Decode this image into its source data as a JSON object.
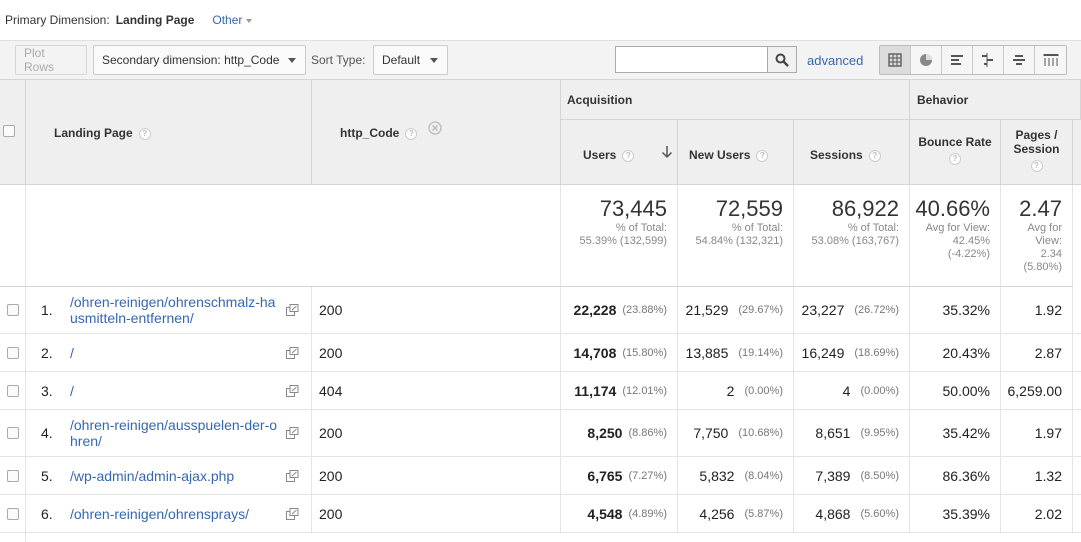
{
  "primary": {
    "label": "Primary Dimension:",
    "current": "Landing Page",
    "other": "Other"
  },
  "toolbar": {
    "plot_rows": "Plot Rows",
    "secondary_dimension": "Secondary dimension: http_Code",
    "sort_type_label": "Sort Type:",
    "sort_type_value": "Default",
    "search_value": "",
    "advanced": "advanced",
    "view_icons": [
      "data-table-icon",
      "pie-icon",
      "performance-icon",
      "comparison-icon",
      "term-cloud-icon",
      "pivot-icon"
    ]
  },
  "headers": {
    "landing_page": "Landing Page",
    "http_code": "http_Code",
    "acquisition": "Acquisition",
    "behavior": "Behavior",
    "users": "Users",
    "new_users": "New Users",
    "sessions": "Sessions",
    "bounce_rate": "Bounce Rate",
    "pages_session_1": "Pages /",
    "pages_session_2": "Session",
    "help": "?"
  },
  "totals": {
    "users": {
      "value": "73,445",
      "line1": "% of Total:",
      "line2": "55.39% (132,599)"
    },
    "new_users": {
      "value": "72,559",
      "line1": "% of Total:",
      "line2": "54.84% (132,321)"
    },
    "sessions": {
      "value": "86,922",
      "line1": "% of Total:",
      "line2": "53.08% (163,767)"
    },
    "bounce_rate": {
      "value": "40.66%",
      "line1": "Avg for View:",
      "line2": "42.45%",
      "line3": "(-4.22%)"
    },
    "pages_session": {
      "value": "2.47",
      "line1": "Avg for",
      "line2": "View:",
      "line3": "2.34",
      "line4": "(5.80%)"
    }
  },
  "rows": [
    {
      "idx": "1.",
      "page1": "/ohren-reinigen/ohrenschmalz-ha",
      "page2": "usmitteln-entfernen/",
      "code": "200",
      "users": "22,228",
      "users_pct": "(23.88%)",
      "new_users": "21,529",
      "new_users_pct": "(29.67%)",
      "sessions": "23,227",
      "sessions_pct": "(26.72%)",
      "bounce": "35.32%",
      "pps": "1.92"
    },
    {
      "idx": "2.",
      "page1": "/",
      "page2": "",
      "code": "200",
      "users": "14,708",
      "users_pct": "(15.80%)",
      "new_users": "13,885",
      "new_users_pct": "(19.14%)",
      "sessions": "16,249",
      "sessions_pct": "(18.69%)",
      "bounce": "20.43%",
      "pps": "2.87"
    },
    {
      "idx": "3.",
      "page1": "/",
      "page2": "",
      "code": "404",
      "users": "11,174",
      "users_pct": "(12.01%)",
      "new_users": "2",
      "new_users_pct": "(0.00%)",
      "sessions": "4",
      "sessions_pct": "(0.00%)",
      "bounce": "50.00%",
      "pps": "6,259.00"
    },
    {
      "idx": "4.",
      "page1": "/ohren-reinigen/ausspuelen-der-o",
      "page2": "hren/",
      "code": "200",
      "users": "8,250",
      "users_pct": "(8.86%)",
      "new_users": "7,750",
      "new_users_pct": "(10.68%)",
      "sessions": "8,651",
      "sessions_pct": "(9.95%)",
      "bounce": "35.42%",
      "pps": "1.97"
    },
    {
      "idx": "5.",
      "page1": "/wp-admin/admin-ajax.php",
      "page2": "",
      "code": "200",
      "users": "6,765",
      "users_pct": "(7.27%)",
      "new_users": "5,832",
      "new_users_pct": "(8.04%)",
      "sessions": "7,389",
      "sessions_pct": "(8.50%)",
      "bounce": "86.36%",
      "pps": "1.32"
    },
    {
      "idx": "6.",
      "page1": "/ohren-reinigen/ohrensprays/",
      "page2": "",
      "code": "200",
      "users": "4,548",
      "users_pct": "(4.89%)",
      "new_users": "4,256",
      "new_users_pct": "(5.87%)",
      "sessions": "4,868",
      "sessions_pct": "(5.60%)",
      "bounce": "35.39%",
      "pps": "2.02"
    }
  ]
}
